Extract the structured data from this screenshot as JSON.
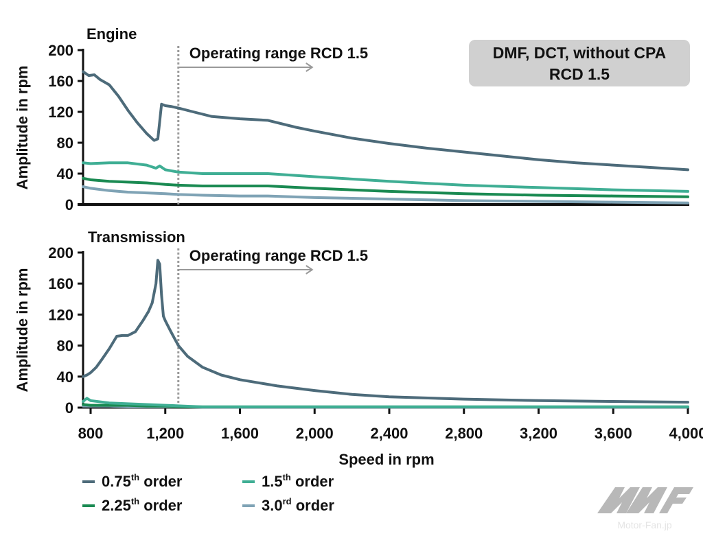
{
  "chart_data": [
    {
      "type": "line",
      "title": "Engine",
      "xlabel": "Speed in rpm",
      "ylabel": "Amplitude in rpm",
      "xlim": [
        760,
        4000
      ],
      "ylim": [
        0,
        200
      ],
      "yticks": [
        0,
        40,
        80,
        120,
        160,
        200
      ],
      "ytick_labels": [
        "0",
        "40",
        "80",
        "120",
        "160",
        "200"
      ],
      "grid": false,
      "annotation": {
        "text": "Operating range RCD 1.5",
        "threshold_x": 1270,
        "arrow": "right"
      },
      "info_box": [
        "DMF, DCT, without CPA",
        "RCD 1.5"
      ],
      "series": [
        {
          "name": "0.75th order",
          "color": "#4d6b7a",
          "x": [
            760,
            790,
            820,
            850,
            900,
            950,
            1000,
            1050,
            1100,
            1140,
            1160,
            1180,
            1200,
            1230,
            1270,
            1350,
            1450,
            1600,
            1750,
            1900,
            2000,
            2200,
            2400,
            2600,
            2800,
            3000,
            3200,
            3400,
            3600,
            3800,
            4000
          ],
          "y": [
            172,
            167,
            168,
            162,
            155,
            140,
            122,
            106,
            92,
            83,
            85,
            130,
            128,
            127,
            125,
            120,
            114,
            111,
            109,
            100,
            95,
            86,
            79,
            73,
            68,
            63,
            58,
            54,
            51,
            48,
            45
          ]
        },
        {
          "name": "1.5th order",
          "color": "#3fae94",
          "x": [
            760,
            800,
            900,
            1000,
            1100,
            1150,
            1170,
            1200,
            1270,
            1400,
            1600,
            1750,
            2000,
            2400,
            2800,
            3200,
            3600,
            4000
          ],
          "y": [
            54,
            53,
            54,
            54,
            51,
            47,
            50,
            45,
            42,
            40,
            40,
            40,
            36,
            30,
            25,
            22,
            19,
            17
          ]
        },
        {
          "name": "2.25th order",
          "color": "#1a8a52",
          "x": [
            760,
            800,
            900,
            1000,
            1100,
            1200,
            1270,
            1400,
            1600,
            1750,
            2000,
            2400,
            2800,
            3200,
            3600,
            4000
          ],
          "y": [
            34,
            32,
            30,
            29,
            28,
            26,
            25,
            24,
            24,
            24,
            21,
            17,
            14,
            12,
            11,
            10
          ]
        },
        {
          "name": "3.0rd order",
          "color": "#7fa3b5",
          "x": [
            760,
            800,
            900,
            1000,
            1100,
            1200,
            1270,
            1400,
            1600,
            1750,
            2000,
            2400,
            2800,
            3200,
            3600,
            4000
          ],
          "y": [
            23,
            21,
            18,
            16,
            15,
            14,
            13,
            12,
            11,
            11,
            9,
            7,
            5,
            4,
            3,
            2
          ]
        }
      ]
    },
    {
      "type": "line",
      "title": "Transmission",
      "xlabel": "Speed in rpm",
      "ylabel": "Amplitude in rpm",
      "xlim": [
        760,
        4000
      ],
      "ylim": [
        0,
        200
      ],
      "xticks": [
        800,
        1200,
        1600,
        2000,
        2400,
        2800,
        3200,
        3600,
        4000
      ],
      "xtick_labels": [
        "800",
        "1,200",
        "1,600",
        "2,000",
        "2,400",
        "2,800",
        "3,200",
        "3,600",
        "4,000"
      ],
      "yticks": [
        0,
        40,
        80,
        120,
        160,
        200
      ],
      "ytick_labels": [
        "0",
        "40",
        "80",
        "120",
        "160",
        "200"
      ],
      "grid": false,
      "annotation": {
        "text": "Operating range RCD 1.5",
        "threshold_x": 1270,
        "arrow": "right"
      },
      "series": [
        {
          "name": "0.75th order",
          "color": "#4d6b7a",
          "x": [
            760,
            780,
            800,
            830,
            860,
            900,
            940,
            970,
            1000,
            1040,
            1080,
            1110,
            1130,
            1150,
            1160,
            1170,
            1180,
            1190,
            1200,
            1230,
            1270,
            1320,
            1400,
            1500,
            1600,
            1800,
            2000,
            2200,
            2400,
            2800,
            3200,
            3600,
            4000
          ],
          "y": [
            40,
            42,
            45,
            52,
            62,
            76,
            92,
            93,
            93,
            98,
            112,
            124,
            135,
            160,
            190,
            185,
            145,
            118,
            112,
            98,
            80,
            66,
            52,
            42,
            36,
            28,
            22,
            17,
            14,
            11,
            9,
            8,
            7
          ]
        },
        {
          "name": "1.5th order",
          "color": "#3fae94",
          "x": [
            760,
            780,
            800,
            900,
            1000,
            1100,
            1200,
            1300,
            1400,
            2000,
            4000
          ],
          "y": [
            8,
            12,
            9,
            6,
            5,
            4,
            3,
            2,
            1,
            1,
            1
          ]
        },
        {
          "name": "2.25th order",
          "color": "#1a8a52",
          "x": [
            760,
            800,
            900,
            1000,
            1100,
            1200,
            1300,
            1400,
            2000,
            4000
          ],
          "y": [
            4,
            3,
            3,
            3,
            2,
            2,
            1,
            1,
            1,
            1
          ]
        },
        {
          "name": "3.0rd order",
          "color": "#7fa3b5",
          "x": [
            760,
            800,
            900,
            1000,
            1100,
            1200,
            1300,
            1400,
            2000,
            4000
          ],
          "y": [
            2,
            2,
            2,
            1,
            1,
            1,
            1,
            0.5,
            0.5,
            0.5
          ]
        }
      ]
    }
  ],
  "legend": {
    "placement": "bottom-left",
    "items": [
      {
        "base": "0.75",
        "sup": "th",
        "rest": " order",
        "color": "#4d6b7a"
      },
      {
        "base": "1.5",
        "sup": "th",
        "rest": " order",
        "color": "#3fae94"
      },
      {
        "base": "2.25",
        "sup": "th",
        "rest": " order",
        "color": "#1a8a52"
      },
      {
        "base": "3.0",
        "sup": "rd",
        "rest": " order",
        "color": "#7fa3b5"
      }
    ]
  },
  "watermark": {
    "text": "Motor-Fan.jp",
    "logo": "MF-logo"
  }
}
